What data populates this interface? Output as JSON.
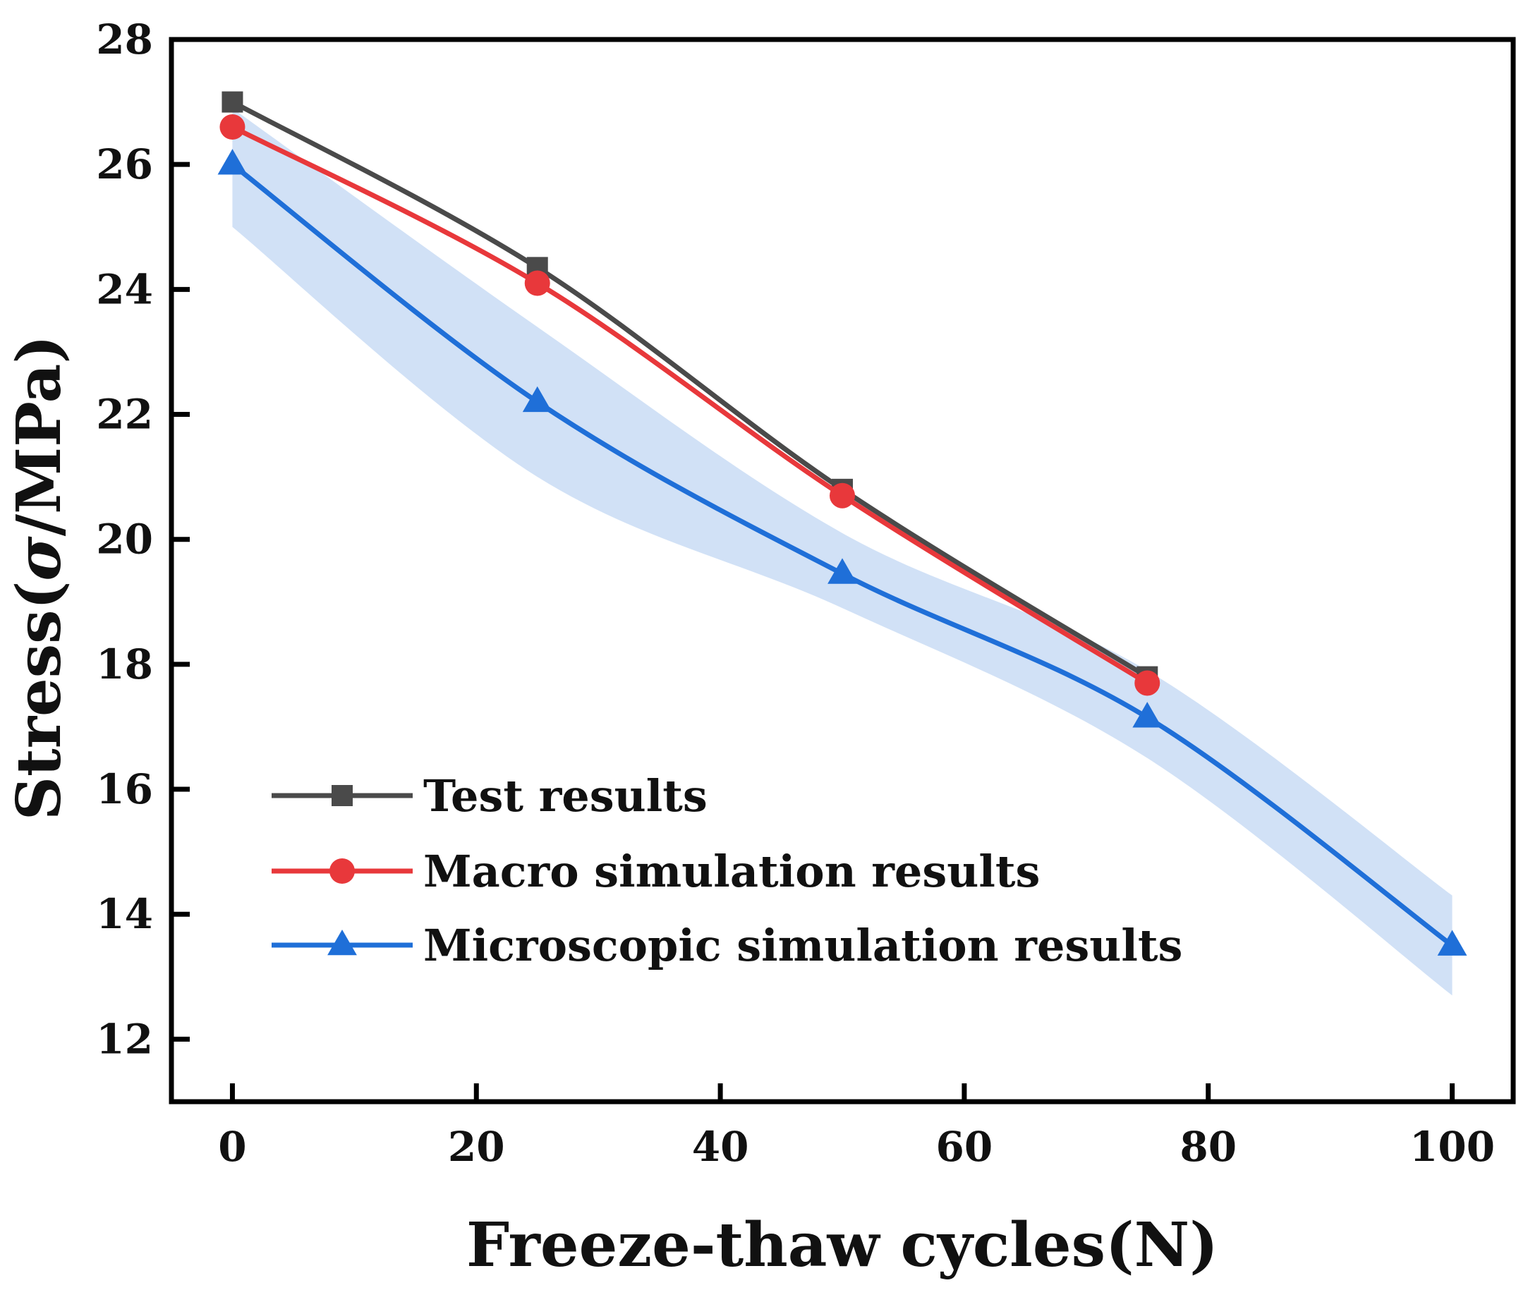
{
  "chart_data": {
    "type": "line",
    "title": "",
    "xlabel": "Freeze-thaw cycles(N)",
    "ylabel_prefix": "Stress(",
    "ylabel_symbol": "σ",
    "ylabel_suffix": "/MPa)",
    "xlim": [
      -5,
      105
    ],
    "ylim": [
      11,
      28
    ],
    "xticks": [
      0,
      20,
      40,
      60,
      80,
      100
    ],
    "yticks": [
      12,
      14,
      16,
      18,
      20,
      22,
      24,
      26,
      28
    ],
    "grid": false,
    "legend_position": "bottom-left",
    "band": {
      "series": "Microscopic simulation results",
      "color": "#c9dcf4",
      "x": [
        0,
        25,
        50,
        75,
        100
      ],
      "upper": [
        26.9,
        23.4,
        20.1,
        17.9,
        14.3
      ],
      "lower": [
        25.0,
        21.0,
        18.9,
        16.5,
        12.7
      ]
    },
    "series": [
      {
        "name": "Test results",
        "color": "#4a4a4a",
        "marker": "square",
        "x": [
          0,
          25,
          50,
          75
        ],
        "values": [
          27.0,
          24.35,
          20.8,
          17.8
        ]
      },
      {
        "name": "Macro simulation results",
        "color": "#e8383b",
        "marker": "circle",
        "x": [
          0,
          25,
          50,
          75
        ],
        "values": [
          26.6,
          24.1,
          20.7,
          17.7
        ]
      },
      {
        "name": "Microscopic simulation results",
        "color": "#1f6fd8",
        "marker": "triangle",
        "x": [
          0,
          25,
          50,
          75,
          100
        ],
        "values": [
          26.0,
          22.2,
          19.45,
          17.15,
          13.5
        ]
      }
    ]
  }
}
